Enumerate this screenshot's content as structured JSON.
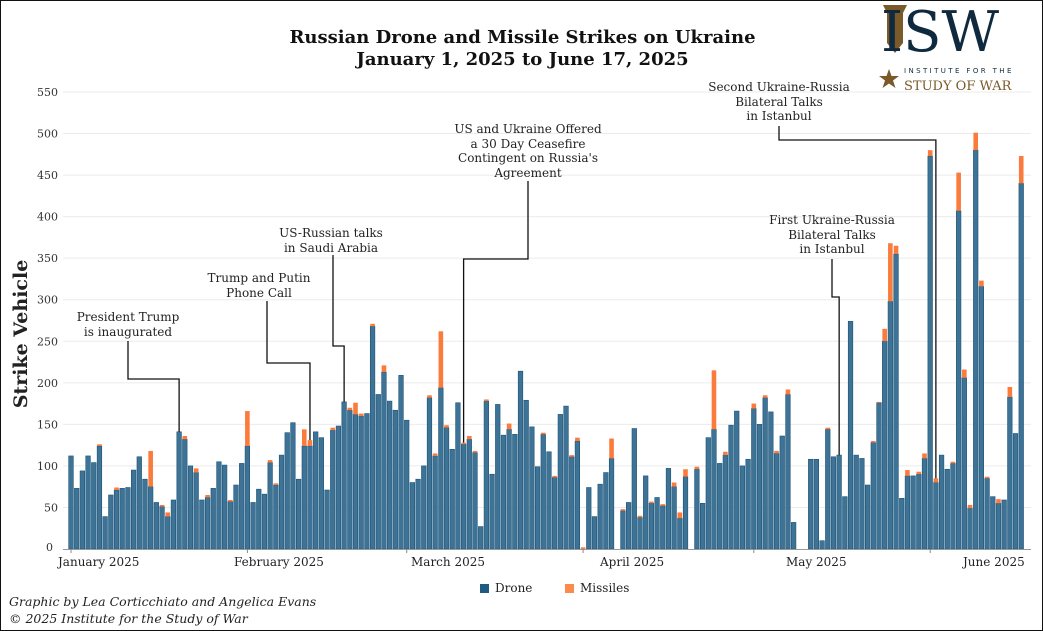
{
  "chart_data": {
    "type": "bar",
    "stacked": true,
    "title": "Russian Drone and Missile Strikes on Ukraine",
    "subtitle": "January 1, 2025 to June 17, 2025",
    "ylabel": "Strike Vehicle",
    "xlabel": "",
    "ylim": [
      0,
      550
    ],
    "y_ticks": [
      "0",
      "50",
      "100",
      "150",
      "200",
      "250",
      "300",
      "350",
      "400",
      "450",
      "500",
      "550"
    ],
    "x_range": [
      "2025-01-01",
      "2025-06-17"
    ],
    "month_labels": [
      "January 2025",
      "February 2025",
      "March 2025",
      "April 2025",
      "May 2025",
      "June 2025"
    ],
    "grid": true,
    "legend_position": "bottom",
    "series": [
      {
        "name": "Drone",
        "color": "#3f7396",
        "values": [
          112,
          73,
          94,
          112,
          104,
          124,
          39,
          65,
          71,
          73,
          74,
          95,
          111,
          84,
          75,
          56,
          51,
          39,
          59,
          141,
          132,
          100,
          92,
          59,
          62,
          73,
          105,
          101,
          57,
          77,
          103,
          124,
          56,
          72,
          66,
          104,
          77,
          113,
          140,
          152,
          84,
          124,
          124,
          141,
          134,
          71,
          143,
          148,
          177,
          167,
          162,
          160,
          163,
          268,
          186,
          213,
          178,
          167,
          209,
          155,
          80,
          84,
          100,
          182,
          112,
          194,
          146,
          120,
          176,
          126,
          132,
          116,
          27,
          178,
          90,
          174,
          137,
          144,
          138,
          214,
          179,
          147,
          99,
          138,
          117,
          86,
          162,
          172,
          111,
          130,
          0,
          74,
          39,
          78,
          92,
          109,
          0,
          46,
          56,
          145,
          38,
          88,
          55,
          62,
          52,
          97,
          75,
          37,
          87,
          0,
          96,
          55,
          134,
          144,
          103,
          113,
          149,
          166,
          100,
          108,
          169,
          150,
          182,
          165,
          115,
          136,
          186,
          32,
          0,
          0,
          108,
          108,
          10,
          144,
          111,
          113,
          63,
          274,
          113,
          109,
          77,
          128,
          176,
          250,
          298,
          355,
          61,
          88,
          88,
          90,
          109,
          473,
          80,
          113,
          96,
          103,
          407,
          206,
          49,
          480,
          316,
          85,
          63,
          55,
          59,
          183,
          139,
          440
        ]
      },
      {
        "name": "Missiles",
        "color": "#fb7b3c",
        "values": [
          0,
          0,
          0,
          0,
          0,
          2,
          0,
          0,
          3,
          0,
          0,
          0,
          0,
          0,
          43,
          0,
          2,
          5,
          0,
          0,
          4,
          0,
          5,
          0,
          3,
          0,
          0,
          0,
          2,
          0,
          0,
          42,
          0,
          0,
          0,
          3,
          2,
          0,
          0,
          0,
          0,
          20,
          7,
          0,
          0,
          0,
          3,
          0,
          0,
          3,
          14,
          3,
          0,
          3,
          0,
          8,
          0,
          0,
          0,
          0,
          0,
          0,
          0,
          3,
          3,
          68,
          3,
          0,
          0,
          2,
          4,
          2,
          0,
          2,
          0,
          0,
          0,
          7,
          0,
          0,
          0,
          0,
          0,
          2,
          0,
          2,
          0,
          0,
          2,
          4,
          2,
          0,
          0,
          0,
          0,
          24,
          0,
          2,
          0,
          0,
          2,
          0,
          2,
          0,
          2,
          0,
          5,
          7,
          9,
          0,
          3,
          0,
          0,
          71,
          0,
          4,
          0,
          0,
          0,
          0,
          6,
          0,
          3,
          0,
          3,
          0,
          6,
          0,
          0,
          0,
          0,
          0,
          0,
          2,
          0,
          0,
          0,
          0,
          0,
          0,
          0,
          2,
          1,
          15,
          70,
          10,
          0,
          7,
          0,
          3,
          6,
          7,
          5,
          0,
          0,
          2,
          46,
          10,
          4,
          21,
          7,
          2,
          0,
          5,
          0,
          12,
          0,
          33
        ]
      }
    ],
    "annotations": [
      {
        "text": [
          "President Trump",
          "is inaugurated"
        ],
        "date": "2025-01-20"
      },
      {
        "text": [
          "Trump and Putin",
          "Phone Call"
        ],
        "date": "2025-02-12"
      },
      {
        "text": [
          "US-Russian talks",
          "in Saudi Arabia"
        ],
        "date": "2025-02-18"
      },
      {
        "text": [
          "US and Ukraine Offered",
          "a 30 Day Ceasefire",
          "Contingent on Russia's",
          "Agreement"
        ],
        "date": "2025-03-11"
      },
      {
        "text": [
          "First Ukraine-Russia",
          "Bilateral Talks",
          "in Istanbul"
        ],
        "date": "2025-05-16"
      },
      {
        "text": [
          "Second Ukraine-Russia",
          "Bilateral Talks",
          "in Istanbul"
        ],
        "date": "2025-06-02"
      }
    ]
  },
  "logo": {
    "letters": "ISW",
    "line1": "INSTITUTE FOR THE",
    "line2": "STUDY OF WAR"
  },
  "credits": {
    "line1": "Graphic by Lea Corticchiato and Angelica Evans",
    "line2": "© 2025 Institute for the Study of War"
  }
}
